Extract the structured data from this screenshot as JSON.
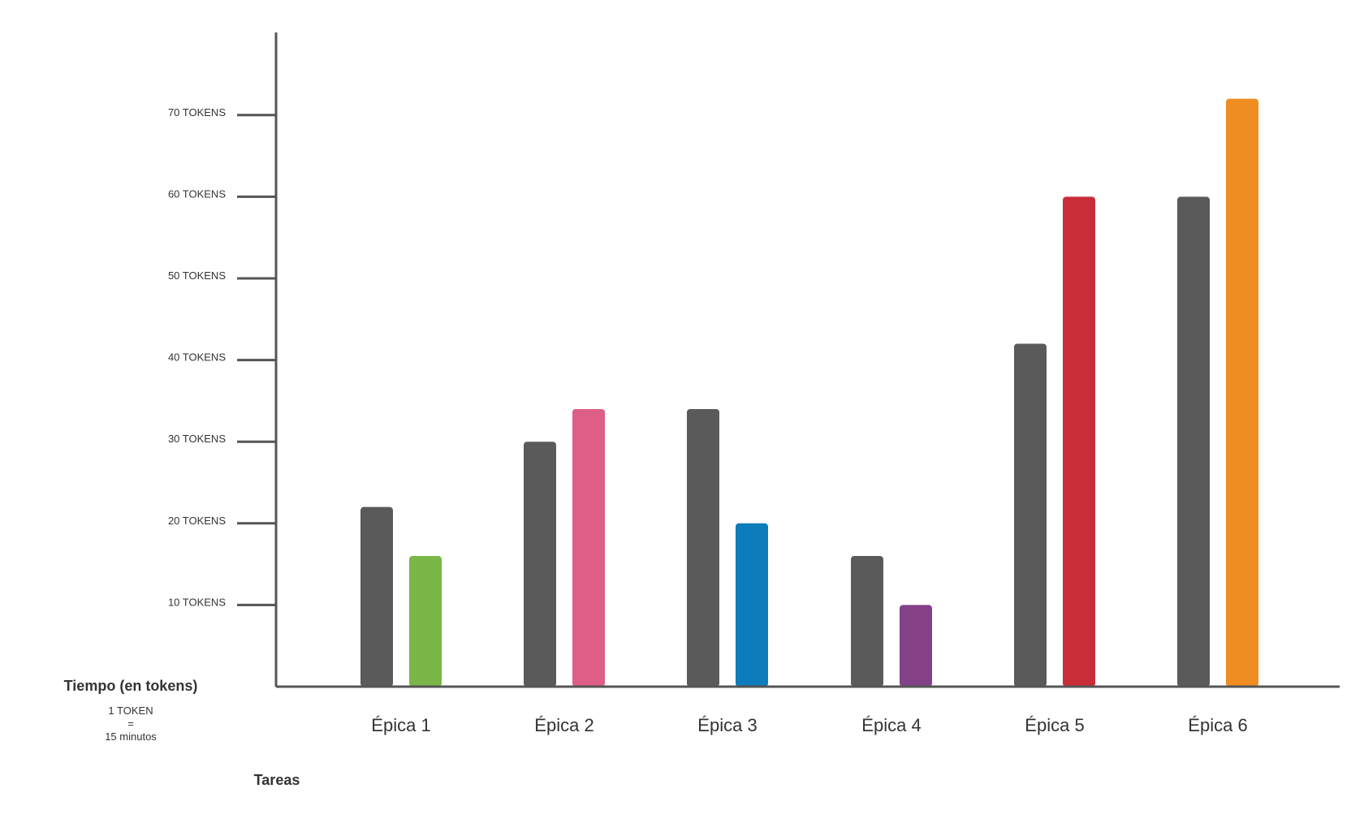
{
  "chart_data": {
    "type": "bar",
    "title": "",
    "ylabel": "Tiempo (en tokens)",
    "ylabel_note": [
      "1 TOKEN",
      "=",
      "15 minutos"
    ],
    "xlabel": "Tareas",
    "ylim": [
      0,
      80
    ],
    "y_ticks": [
      10,
      20,
      30,
      40,
      50,
      60,
      70
    ],
    "y_tick_labels": [
      "10 TOKENS",
      "20 TOKENS",
      "30 TOKENS",
      "40 TOKENS",
      "50 TOKENS",
      "60 TOKENS",
      "70 TOKENS"
    ],
    "categories": [
      "Épica 1",
      "Épica 2",
      "Épica 3",
      "Épica 4",
      "Épica 5",
      "Épica 6"
    ],
    "grid": false,
    "legend": "none",
    "series": [
      {
        "values": [
          22,
          30,
          34,
          16,
          42,
          60
        ],
        "colors": [
          "#5a5a5a",
          "#5a5a5a",
          "#5a5a5a",
          "#5a5a5a",
          "#5a5a5a",
          "#5a5a5a"
        ]
      },
      {
        "values": [
          16,
          34,
          20,
          10,
          60,
          72
        ],
        "colors": [
          "#7ab648",
          "#de5f85",
          "#0c7cba",
          "#834187",
          "#c92d39",
          "#ef8d22"
        ]
      }
    ]
  }
}
